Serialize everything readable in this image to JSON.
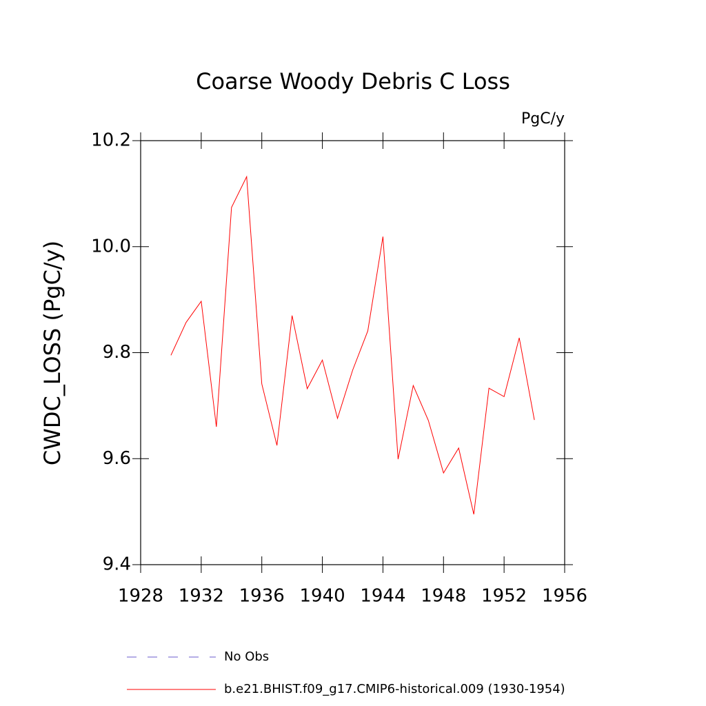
{
  "chart_data": {
    "type": "line",
    "title": "Coarse Woody Debris C Loss",
    "units": "PgC/y",
    "y_label": "CWDC_LOSS  (PgC/y)",
    "x": [
      1930,
      1931,
      1932,
      1933,
      1934,
      1935,
      1936,
      1937,
      1938,
      1939,
      1940,
      1941,
      1942,
      1943,
      1944,
      1945,
      1946,
      1947,
      1948,
      1949,
      1950,
      1951,
      1952,
      1953,
      1954
    ],
    "series": [
      {
        "name": "No Obs",
        "color": "#6a5acd",
        "dashed": true,
        "values": [
          null,
          null,
          null,
          null,
          null,
          null,
          null,
          null,
          null,
          null,
          null,
          null,
          null,
          null,
          null,
          null,
          null,
          null,
          null,
          null,
          null,
          null,
          null,
          null,
          null
        ]
      },
      {
        "name": "b.e21.BHIST.f09_g17.CMIP6-historical.009 (1930-1954)",
        "color": "#ff0000",
        "dashed": false,
        "values": [
          9.795,
          9.857,
          9.897,
          9.66,
          10.074,
          10.132,
          9.741,
          9.625,
          9.87,
          9.732,
          9.786,
          9.676,
          9.767,
          9.841,
          10.019,
          9.599,
          9.738,
          9.672,
          9.573,
          9.62,
          9.495,
          9.733,
          9.717,
          9.828,
          9.673
        ]
      }
    ],
    "xlim": [
      1928,
      1956
    ],
    "xticks": [
      1928,
      1932,
      1936,
      1940,
      1944,
      1948,
      1952,
      1956
    ],
    "ylim": [
      9.4,
      10.2
    ],
    "yticks": [
      9.4,
      9.6,
      9.8,
      {
        "value": 10,
        "label": "10.0"
      },
      10.2
    ]
  }
}
